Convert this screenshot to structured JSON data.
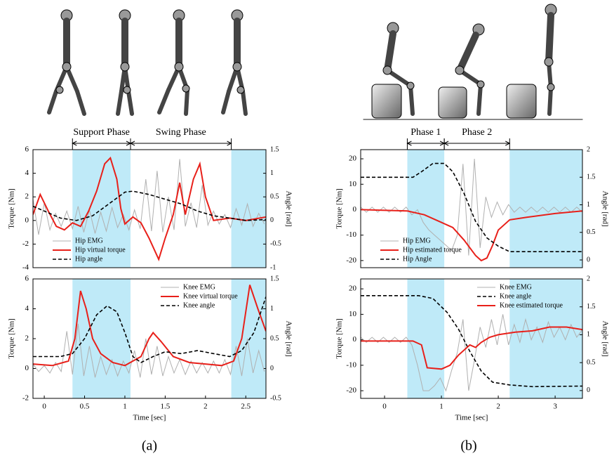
{
  "captions": [
    "(a)",
    "(b)"
  ],
  "chart_data": [
    {
      "type": "line",
      "ylabel": "Torque [Nm]",
      "y2label": "Angle [rad]",
      "xlim": [
        -0.14,
        2.75
      ],
      "ylim": [
        -4,
        6
      ],
      "yticks": [
        -4,
        -2,
        0,
        2,
        4,
        6
      ],
      "y2lim": [
        -1,
        1.5
      ],
      "y2ticks": [
        -1,
        -0.5,
        0,
        0.5,
        1,
        1.5
      ],
      "shaded": [
        [
          0.35,
          1.07
        ],
        [
          2.32,
          2.75
        ]
      ],
      "shade_color": "#bfeaf8",
      "legend": "lower left",
      "annotations": [
        {
          "text": "Support Phase",
          "x": [
            0.35,
            1.07
          ]
        },
        {
          "text": "Swing Phase",
          "x": [
            1.07,
            2.32
          ]
        }
      ],
      "series": [
        {
          "name": "Hip EMG",
          "color": "#b0b0b0",
          "width": 1,
          "x": [
            -0.14,
            -0.07,
            0,
            0.07,
            0.14,
            0.21,
            0.28,
            0.35,
            0.42,
            0.49,
            0.56,
            0.63,
            0.7,
            0.77,
            0.84,
            0.91,
            0.98,
            1.05,
            1.12,
            1.19,
            1.26,
            1.33,
            1.4,
            1.47,
            1.54,
            1.61,
            1.68,
            1.75,
            1.82,
            1.89,
            1.96,
            2.03,
            2.1,
            2.17,
            2.24,
            2.31,
            2.38,
            2.45,
            2.52,
            2.59,
            2.66,
            2.73
          ],
          "values": [
            1.8,
            -1.2,
            1.5,
            -0.8,
            0.6,
            -0.5,
            0.8,
            -0.7,
            1.2,
            -1.0,
            0.9,
            -1.1,
            0.7,
            -0.9,
            1.1,
            -0.6,
            0.5,
            -0.8,
            0.9,
            -0.7,
            3.5,
            -0.9,
            4.2,
            -1.0,
            2.0,
            -0.8,
            5.2,
            -0.5,
            1.5,
            -0.6,
            3.0,
            -0.4,
            0.8,
            -0.3,
            0.5,
            -0.6,
            1.0,
            -0.4,
            1.4,
            -0.5,
            0.6,
            -0.3
          ]
        },
        {
          "name": "Hip virtual torque",
          "color": "#e8201a",
          "width": 2,
          "x": [
            -0.14,
            -0.05,
            0.05,
            0.15,
            0.25,
            0.35,
            0.45,
            0.55,
            0.65,
            0.75,
            0.82,
            0.9,
            0.95,
            1.0,
            1.1,
            1.2,
            1.3,
            1.42,
            1.5,
            1.6,
            1.68,
            1.75,
            1.85,
            1.93,
            2.0,
            2.1,
            2.3,
            2.5,
            2.75
          ],
          "values": [
            0.5,
            2.2,
            0.8,
            -0.5,
            -0.8,
            -0.2,
            -0.5,
            0.8,
            2.5,
            4.8,
            5.3,
            3.5,
            1,
            -0.3,
            0.3,
            -0.2,
            -1.5,
            -3.3,
            -1.5,
            0.5,
            3.2,
            0.5,
            3.5,
            4.8,
            2,
            0,
            0.2,
            0,
            0.3
          ]
        },
        {
          "name": "Hip angle",
          "color": "#000000",
          "width": 1.6,
          "dash": true,
          "axis": "y2",
          "x": [
            -0.14,
            0,
            0.2,
            0.4,
            0.6,
            0.8,
            1.0,
            1.1,
            1.3,
            1.5,
            1.7,
            1.9,
            2.1,
            2.3,
            2.5,
            2.75
          ],
          "values": [
            0.3,
            0.2,
            0.05,
            0,
            0.1,
            0.35,
            0.6,
            0.62,
            0.55,
            0.45,
            0.35,
            0.2,
            0.1,
            0.05,
            0,
            0.02
          ]
        }
      ]
    },
    {
      "type": "line",
      "ylabel": "Torque [Nm]",
      "y2label": "Angle [rad]",
      "xlabel": "Time [sec]",
      "xlim": [
        -0.14,
        2.75
      ],
      "xticks": [
        0,
        0.5,
        1,
        1.5,
        2,
        2.5
      ],
      "ylim": [
        -2,
        6
      ],
      "yticks": [
        -2,
        0,
        2,
        4,
        6
      ],
      "y2lim": [
        -0.5,
        1.5
      ],
      "y2ticks": [
        -0.5,
        0,
        0.5,
        1,
        1.5
      ],
      "shaded": [
        [
          0.35,
          1.07
        ],
        [
          2.32,
          2.75
        ]
      ],
      "shade_color": "#bfeaf8",
      "legend": "upper right",
      "series": [
        {
          "name": "Knee EMG",
          "color": "#b0b0b0",
          "width": 1,
          "x": [
            -0.14,
            -0.07,
            0,
            0.07,
            0.14,
            0.21,
            0.28,
            0.35,
            0.42,
            0.49,
            0.56,
            0.63,
            0.7,
            0.77,
            0.84,
            0.91,
            0.98,
            1.05,
            1.12,
            1.19,
            1.26,
            1.33,
            1.4,
            1.47,
            1.54,
            1.61,
            1.68,
            1.75,
            1.82,
            1.89,
            1.96,
            2.03,
            2.1,
            2.17,
            2.24,
            2.31,
            2.38,
            2.45,
            2.52,
            2.59,
            2.66,
            2.73
          ],
          "values": [
            0.3,
            -0.2,
            0.2,
            -0.3,
            0.4,
            -0.2,
            2.5,
            -0.4,
            3.0,
            -0.5,
            1.5,
            -0.6,
            0.8,
            -0.4,
            0.6,
            -0.5,
            0.5,
            -0.3,
            1.2,
            -0.6,
            2.0,
            -0.4,
            1.5,
            -0.5,
            0.8,
            -0.3,
            0.6,
            -0.4,
            0.5,
            -0.3,
            0.4,
            -0.3,
            0.5,
            -0.3,
            0.6,
            -0.4,
            1.5,
            -0.5,
            2.0,
            -0.3,
            1.2,
            -0.2
          ]
        },
        {
          "name": "Knee virtual torque",
          "color": "#e8201a",
          "width": 2,
          "x": [
            -0.14,
            0.1,
            0.3,
            0.38,
            0.45,
            0.52,
            0.6,
            0.7,
            0.85,
            1.0,
            1.1,
            1.2,
            1.3,
            1.35,
            1.45,
            1.6,
            1.8,
            2.0,
            2.2,
            2.35,
            2.45,
            2.55,
            2.65,
            2.75
          ],
          "values": [
            0.3,
            0.2,
            0.5,
            2,
            5.2,
            4,
            2,
            1,
            0.4,
            0.2,
            0.5,
            0.8,
            2,
            2.4,
            1.8,
            0.8,
            0.4,
            0.3,
            0.2,
            0.5,
            2,
            5.6,
            4,
            2.5
          ]
        },
        {
          "name": "Knee angle",
          "color": "#000000",
          "width": 1.6,
          "dash": true,
          "axis": "y2",
          "x": [
            -0.14,
            0.2,
            0.35,
            0.5,
            0.65,
            0.78,
            0.9,
            1.0,
            1.1,
            1.2,
            1.35,
            1.5,
            1.7,
            1.9,
            2.1,
            2.3,
            2.45,
            2.6,
            2.75
          ],
          "values": [
            0.2,
            0.2,
            0.25,
            0.5,
            0.9,
            1.05,
            0.95,
            0.6,
            0.2,
            0.1,
            0.2,
            0.28,
            0.25,
            0.3,
            0.25,
            0.2,
            0.3,
            0.6,
            1.2
          ]
        }
      ]
    },
    {
      "type": "line",
      "ylabel": "Torque [Nm]",
      "y2label": "Angle [rad]",
      "xlim": [
        -0.42,
        3.48
      ],
      "ylim": [
        -22.8,
        23.6
      ],
      "yticks": [
        -20,
        -10,
        0,
        10,
        20
      ],
      "y2lim": [
        -0.14,
        2
      ],
      "y2ticks": [
        0,
        0.5,
        1,
        1.5,
        2
      ],
      "shaded": [
        [
          0.4,
          1.05
        ],
        [
          2.2,
          3.48
        ]
      ],
      "shade_color": "#bfeaf8",
      "legend": "lower left",
      "annotations": [
        {
          "text": "Phase 1",
          "x": [
            0.4,
            1.05
          ]
        },
        {
          "text": "Phase 2",
          "x": [
            1.05,
            2.2
          ]
        }
      ],
      "series": [
        {
          "name": "Hip EMG",
          "color": "#b0b0b0",
          "width": 1,
          "x": [
            -0.42,
            -0.32,
            -0.22,
            -0.12,
            -0.02,
            0.08,
            0.18,
            0.28,
            0.38,
            0.48,
            0.58,
            0.68,
            0.78,
            0.88,
            0.98,
            1.08,
            1.18,
            1.28,
            1.38,
            1.48,
            1.58,
            1.68,
            1.78,
            1.88,
            1.98,
            2.08,
            2.18,
            2.28,
            2.38,
            2.48,
            2.58,
            2.68,
            2.78,
            2.88,
            2.98,
            3.08,
            3.18,
            3.28,
            3.38,
            3.48
          ],
          "values": [
            1,
            -1,
            1,
            -1,
            1,
            -1,
            1,
            -1,
            1,
            -2,
            0,
            -5,
            -8,
            -10,
            -12,
            -14,
            -16,
            -10,
            18,
            -18,
            20,
            -15,
            5,
            -3,
            3,
            -2,
            2,
            -1,
            1,
            -1,
            1,
            -1,
            1,
            -1,
            1,
            -1,
            1,
            -1,
            1,
            -1
          ]
        },
        {
          "name": "Hip estimated torque",
          "color": "#e8201a",
          "width": 2,
          "x": [
            -0.42,
            0.4,
            0.7,
            1.0,
            1.2,
            1.4,
            1.6,
            1.7,
            1.8,
            1.9,
            2.0,
            2.2,
            2.5,
            3.0,
            3.48
          ],
          "values": [
            0,
            -0.5,
            -2,
            -5,
            -7,
            -12,
            -18,
            -20,
            -19,
            -14,
            -8,
            -4,
            -3,
            -1.5,
            -0.5
          ]
        },
        {
          "name": "Hip Angle",
          "color": "#000000",
          "width": 1.6,
          "dash": true,
          "axis": "y2",
          "x": [
            -0.42,
            0.5,
            0.65,
            0.85,
            1.05,
            1.2,
            1.4,
            1.6,
            1.8,
            2.0,
            2.2,
            3.48
          ],
          "values": [
            1.5,
            1.5,
            1.6,
            1.75,
            1.75,
            1.6,
            1.2,
            0.7,
            0.4,
            0.25,
            0.15,
            0.15
          ]
        }
      ]
    },
    {
      "type": "line",
      "ylabel": "Torque [Nm]",
      "y2label": "Angle [rad]",
      "xlabel": "Time [sec]",
      "xlim": [
        -0.42,
        3.48
      ],
      "xticks": [
        0,
        1,
        2,
        3
      ],
      "ylim": [
        -23,
        23.9
      ],
      "yticks": [
        -20,
        -10,
        0,
        10,
        20
      ],
      "y2lim": [
        -0.14,
        2
      ],
      "y2ticks": [
        0,
        0.5,
        1,
        1.5,
        2
      ],
      "shaded": [
        [
          0.4,
          1.05
        ],
        [
          2.2,
          3.48
        ]
      ],
      "shade_color": "#bfeaf8",
      "legend": "upper right",
      "series": [
        {
          "name": "Knee EMG",
          "color": "#b0b0b0",
          "width": 1,
          "x": [
            -0.42,
            -0.32,
            -0.22,
            -0.12,
            -0.02,
            0.08,
            0.18,
            0.28,
            0.38,
            0.48,
            0.58,
            0.68,
            0.78,
            0.88,
            0.98,
            1.08,
            1.18,
            1.28,
            1.38,
            1.48,
            1.58,
            1.68,
            1.78,
            1.88,
            1.98,
            2.08,
            2.18,
            2.28,
            2.38,
            2.48,
            2.58,
            2.68,
            2.78,
            2.88,
            2.98,
            3.08,
            3.18,
            3.28,
            3.38,
            3.48
          ],
          "values": [
            1,
            -1,
            1,
            -1,
            1,
            -1,
            1,
            -1,
            1,
            -2,
            -10,
            -20,
            -20,
            -18,
            -15,
            -20,
            -12,
            -5,
            8,
            -20,
            -8,
            5,
            -3,
            8,
            -2,
            10,
            -2,
            6,
            -1,
            8,
            0,
            5,
            -1,
            7,
            1,
            5,
            0,
            6,
            1,
            4
          ]
        },
        {
          "name": "Knee angle",
          "color": "#000000",
          "width": 1.6,
          "dash": true,
          "axis": "y2",
          "x": [
            -0.42,
            0.6,
            0.85,
            1.1,
            1.3,
            1.5,
            1.7,
            1.9,
            2.2,
            2.6,
            3.48
          ],
          "values": [
            1.7,
            1.7,
            1.65,
            1.4,
            1.1,
            0.7,
            0.35,
            0.15,
            0.1,
            0.07,
            0.08
          ]
        },
        {
          "name": "Knee estimated torque",
          "color": "#e8201a",
          "width": 2,
          "x": [
            -0.42,
            0.5,
            0.65,
            0.75,
            1.0,
            1.15,
            1.3,
            1.5,
            1.6,
            1.7,
            1.85,
            2.0,
            2.3,
            2.6,
            2.9,
            3.2,
            3.48
          ],
          "values": [
            -0.5,
            -0.5,
            -2,
            -11,
            -11.5,
            -10,
            -6,
            -2,
            -3,
            -1,
            1,
            2,
            3,
            3.5,
            5,
            5,
            4
          ]
        }
      ]
    }
  ]
}
